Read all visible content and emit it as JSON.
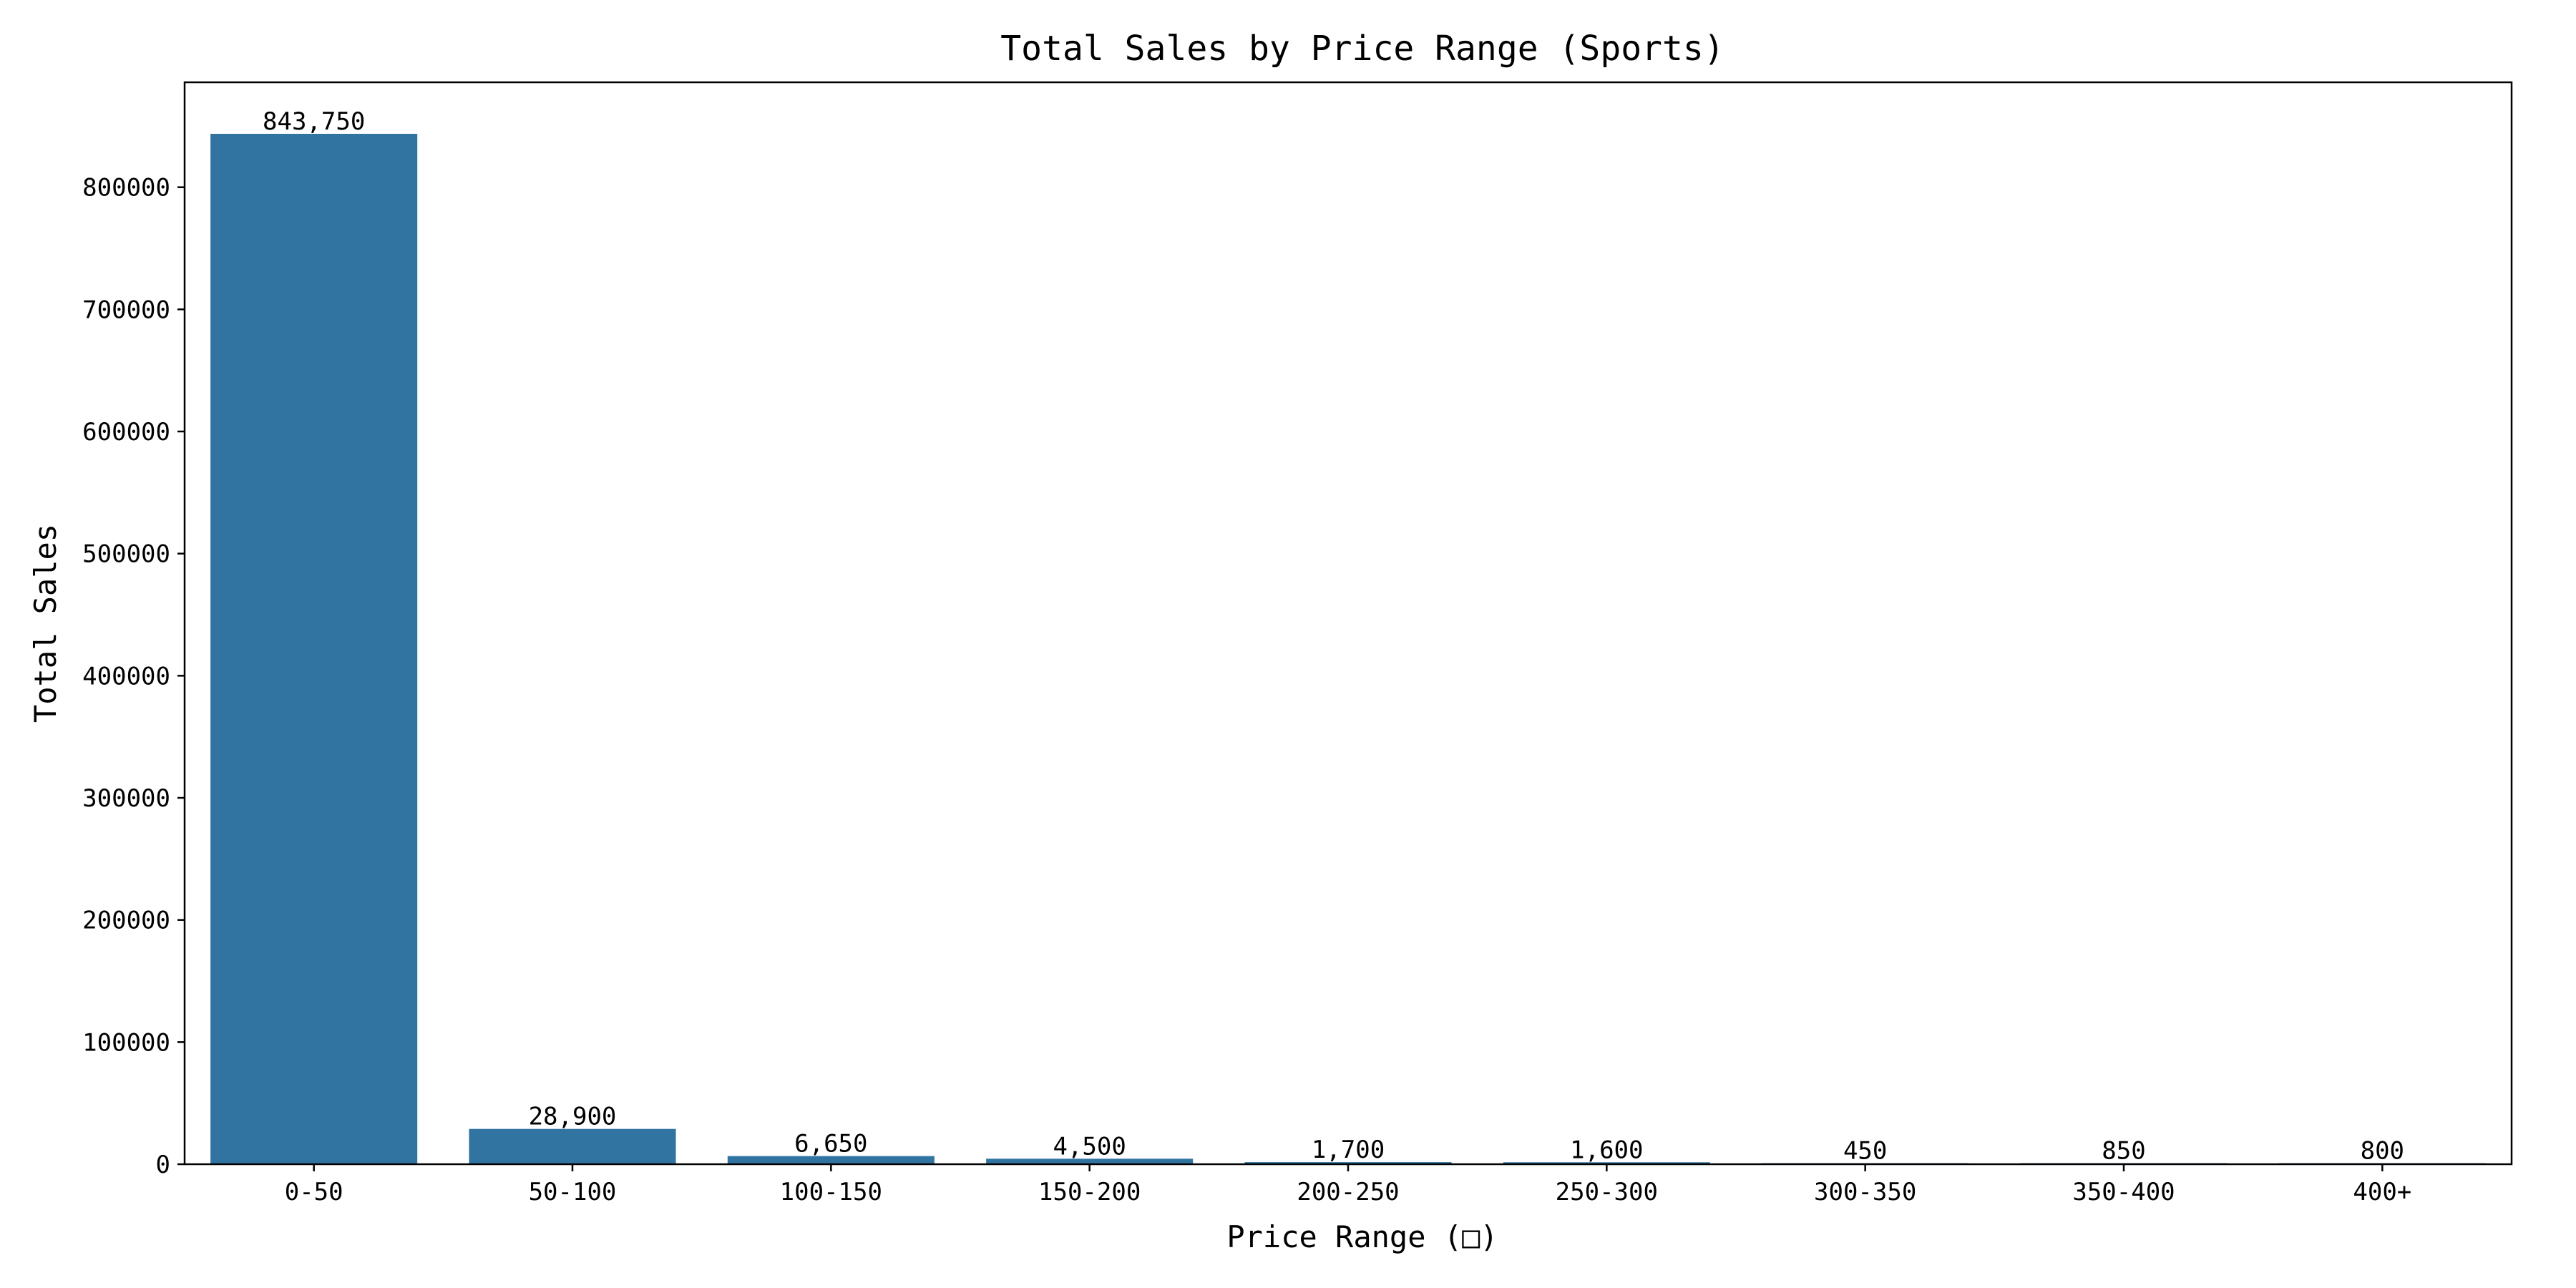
{
  "chart_data": {
    "type": "bar",
    "title": "Total Sales by Price Range (Sports)",
    "xlabel": "Price Range (□)",
    "ylabel": "Total Sales",
    "categories": [
      "0-50",
      "50-100",
      "100-150",
      "150-200",
      "200-250",
      "250-300",
      "300-350",
      "350-400",
      "400+"
    ],
    "values": [
      843750,
      28900,
      6650,
      4500,
      1700,
      1600,
      450,
      850,
      800
    ],
    "data_labels": [
      "843,750",
      "28,900",
      "6,650",
      "4,500",
      "1,700",
      "1,600",
      "450",
      "850",
      "800"
    ],
    "ylim": [
      0,
      885937.5
    ],
    "yticks": [
      0,
      100000,
      200000,
      300000,
      400000,
      500000,
      600000,
      700000,
      800000
    ],
    "ytick_labels": [
      "0",
      "100000",
      "200000",
      "300000",
      "400000",
      "500000",
      "600000",
      "700000",
      "800000"
    ],
    "grid": false,
    "legend": "none",
    "bar_color": "#3274a1"
  }
}
